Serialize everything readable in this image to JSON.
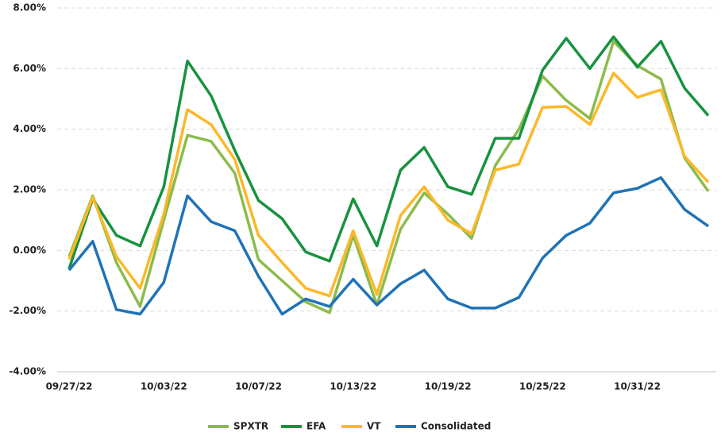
{
  "chart_data": {
    "type": "line",
    "categories": [
      "09/27/22",
      null,
      null,
      null,
      "10/03/22",
      null,
      null,
      null,
      "10/07/22",
      null,
      null,
      null,
      "10/13/22",
      null,
      null,
      null,
      "10/19/22",
      null,
      null,
      null,
      "10/25/22",
      null,
      null,
      null,
      "10/31/22",
      null,
      null,
      null
    ],
    "series": [
      {
        "name": "SPXTR",
        "color": "#8cbb4b",
        "values": [
          -0.2,
          1.8,
          -0.4,
          -1.85,
          1.0,
          3.8,
          3.6,
          2.55,
          -0.3,
          -1.0,
          -1.7,
          -2.05,
          0.5,
          -1.8,
          0.7,
          1.9,
          1.2,
          0.4,
          2.8,
          4.0,
          5.75,
          4.95,
          4.35,
          6.9,
          6.1,
          5.65,
          3.05,
          1.95
        ]
      },
      {
        "name": "EFA",
        "color": "#17923f",
        "values": [
          -0.6,
          1.7,
          0.5,
          0.15,
          2.1,
          6.25,
          5.1,
          3.3,
          1.65,
          1.05,
          -0.05,
          -0.35,
          1.7,
          0.15,
          2.65,
          3.4,
          2.1,
          1.85,
          3.7,
          3.7,
          5.95,
          7.0,
          6.0,
          7.05,
          6.05,
          6.9,
          5.35,
          4.45
        ]
      },
      {
        "name": "VT",
        "color": "#fbb829",
        "values": [
          -0.3,
          1.75,
          -0.2,
          -1.25,
          1.2,
          4.65,
          4.15,
          3.0,
          0.5,
          -0.4,
          -1.25,
          -1.5,
          0.65,
          -1.45,
          1.15,
          2.1,
          1.0,
          0.55,
          2.65,
          2.85,
          4.72,
          4.75,
          4.15,
          5.85,
          5.05,
          5.3,
          3.1,
          2.25
        ]
      },
      {
        "name": "Consolidated",
        "color": "#1f73b7",
        "values": [
          -0.65,
          0.3,
          -1.95,
          -2.1,
          -1.05,
          1.8,
          0.95,
          0.65,
          -0.85,
          -2.1,
          -1.6,
          -1.85,
          -0.95,
          -1.8,
          -1.1,
          -0.65,
          -1.6,
          -1.9,
          -1.9,
          -1.55,
          -0.25,
          0.5,
          0.9,
          1.9,
          2.05,
          2.4,
          1.35,
          0.8
        ]
      }
    ],
    "ylim": [
      -4,
      8
    ],
    "yticks": [
      {
        "value": -4,
        "label": "-4.00%"
      },
      {
        "value": -2,
        "label": "-2.00%"
      },
      {
        "value": 0,
        "label": "0.00%"
      },
      {
        "value": 2,
        "label": "2.00%"
      },
      {
        "value": 4,
        "label": "4.00%"
      },
      {
        "value": 6,
        "label": "6.00%"
      },
      {
        "value": 8,
        "label": "8.00%"
      }
    ],
    "grid": true,
    "legend": "bottom"
  }
}
